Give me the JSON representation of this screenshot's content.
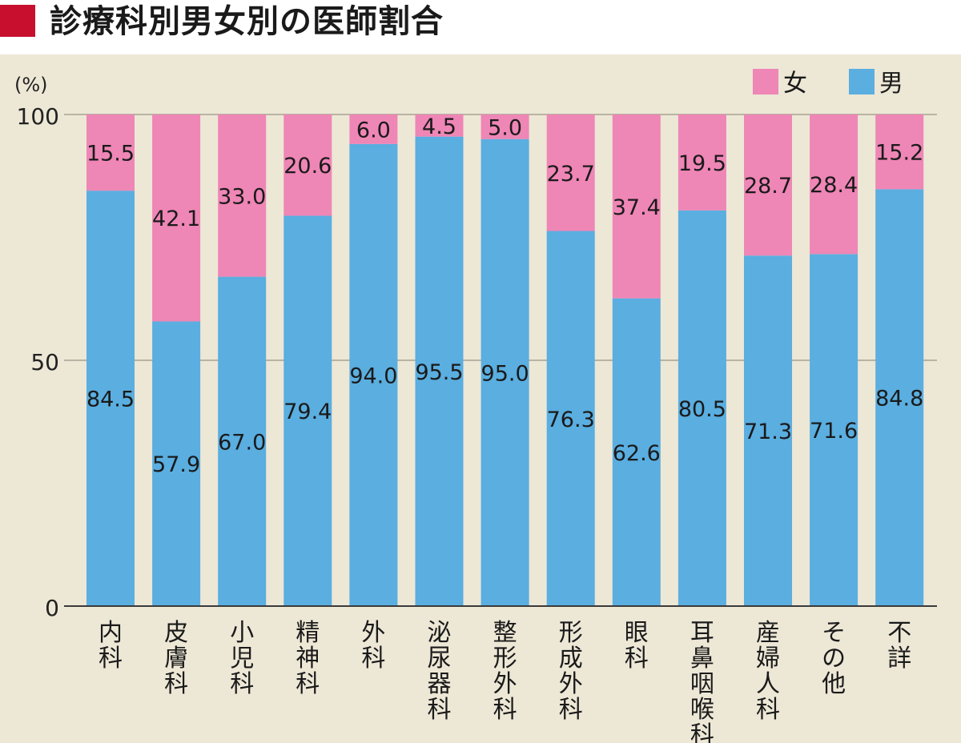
{
  "title": "診療科別男女別の医師割合",
  "chart_data": {
    "type": "bar",
    "stacked": true,
    "y_unit_label": "(%)",
    "ylim": [
      0,
      100
    ],
    "yticks": [
      0,
      50,
      100
    ],
    "categories": [
      [
        "内",
        "科"
      ],
      [
        "皮",
        "膚",
        "科"
      ],
      [
        "小",
        "児",
        "科"
      ],
      [
        "精",
        "神",
        "科"
      ],
      [
        "外",
        "科"
      ],
      [
        "泌",
        "尿",
        "器",
        "科"
      ],
      [
        "整",
        "形",
        "外",
        "科"
      ],
      [
        "形",
        "成",
        "外",
        "科"
      ],
      [
        "眼",
        "科"
      ],
      [
        "耳",
        "鼻",
        "咽",
        "喉",
        "科"
      ],
      [
        "産",
        "婦",
        "人",
        "科"
      ],
      [
        "そ",
        "の",
        "他"
      ],
      [
        "不",
        "詳"
      ]
    ],
    "series": [
      {
        "name": "男",
        "color": "#5aaee0",
        "values": [
          84.5,
          57.9,
          67.0,
          79.4,
          94.0,
          95.5,
          95.0,
          76.3,
          62.6,
          80.5,
          71.3,
          71.6,
          84.8
        ],
        "labels": [
          "84.5",
          "57.9",
          "67.0",
          "79.4",
          "94.0",
          "95.5",
          "95.0",
          "76.3",
          "62.6",
          "80.5",
          "71.3",
          "71.6",
          "84.8"
        ]
      },
      {
        "name": "女",
        "color": "#ee86b6",
        "values": [
          15.5,
          42.1,
          33.0,
          20.6,
          6.0,
          4.5,
          5.0,
          23.7,
          37.4,
          19.5,
          28.7,
          28.4,
          15.2
        ],
        "labels": [
          "15.5",
          "42.1",
          "33.0",
          "20.6",
          "6.0",
          "4.5",
          "5.0",
          "23.7",
          "37.4",
          "19.5",
          "28.7",
          "28.4",
          "15.2"
        ]
      }
    ],
    "legend": {
      "position": "top-right",
      "items": [
        {
          "label": "女",
          "color": "#ee86b6"
        },
        {
          "label": "男",
          "color": "#5aaee0"
        }
      ]
    },
    "grid": true
  }
}
